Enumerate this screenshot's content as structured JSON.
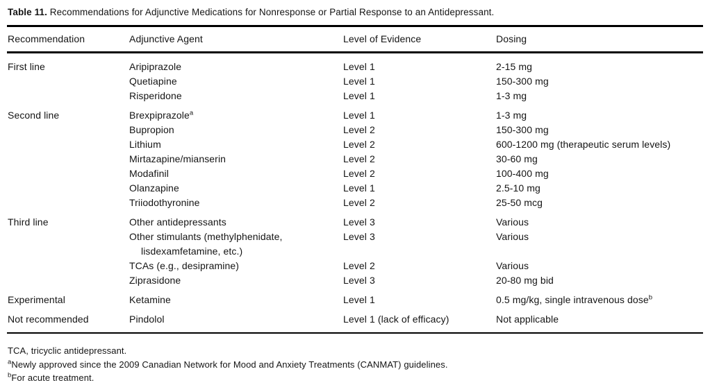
{
  "table": {
    "title_label": "Table 11.",
    "title_text": " Recommendations for Adjunctive Medications for Nonresponse or Partial Response to an Antidepressant.",
    "columns": [
      "Recommendation",
      "Adjunctive Agent",
      "Level of Evidence",
      "Dosing"
    ],
    "sections": [
      {
        "recommendation": "First line",
        "rows": [
          {
            "agent": "Aripiprazole",
            "agent_sup": "",
            "evidence": "Level 1",
            "dosing": "2-15 mg",
            "dosing_sup": ""
          },
          {
            "agent": "Quetiapine",
            "agent_sup": "",
            "evidence": "Level 1",
            "dosing": "150-300 mg",
            "dosing_sup": ""
          },
          {
            "agent": "Risperidone",
            "agent_sup": "",
            "evidence": "Level 1",
            "dosing": "1-3 mg",
            "dosing_sup": ""
          }
        ]
      },
      {
        "recommendation": "Second line",
        "rows": [
          {
            "agent": "Brexpiprazole",
            "agent_sup": "a",
            "evidence": "Level 1",
            "dosing": "1-3 mg",
            "dosing_sup": ""
          },
          {
            "agent": "Bupropion",
            "agent_sup": "",
            "evidence": "Level 2",
            "dosing": "150-300 mg",
            "dosing_sup": ""
          },
          {
            "agent": "Lithium",
            "agent_sup": "",
            "evidence": "Level 2",
            "dosing": "600-1200 mg (therapeutic serum levels)",
            "dosing_sup": ""
          },
          {
            "agent": "Mirtazapine/mianserin",
            "agent_sup": "",
            "evidence": "Level 2",
            "dosing": "30-60 mg",
            "dosing_sup": ""
          },
          {
            "agent": "Modafinil",
            "agent_sup": "",
            "evidence": "Level 2",
            "dosing": "100-400 mg",
            "dosing_sup": ""
          },
          {
            "agent": "Olanzapine",
            "agent_sup": "",
            "evidence": "Level 1",
            "dosing": "2.5-10 mg",
            "dosing_sup": ""
          },
          {
            "agent": "Triiodothyronine",
            "agent_sup": "",
            "evidence": "Level 2",
            "dosing": "25-50 mcg",
            "dosing_sup": ""
          }
        ]
      },
      {
        "recommendation": "Third line",
        "rows": [
          {
            "agent": "Other antidepressants",
            "agent_sup": "",
            "evidence": "Level 3",
            "dosing": "Various",
            "dosing_sup": ""
          },
          {
            "agent": "Other stimulants (methylphenidate, lisdexamfetamine, etc.)",
            "agent_sup": "",
            "evidence": "Level 3",
            "dosing": "Various",
            "dosing_sup": ""
          },
          {
            "agent": "TCAs (e.g., desipramine)",
            "agent_sup": "",
            "evidence": "Level 2",
            "dosing": "Various",
            "dosing_sup": ""
          },
          {
            "agent": "Ziprasidone",
            "agent_sup": "",
            "evidence": "Level 3",
            "dosing": "20-80 mg bid",
            "dosing_sup": ""
          }
        ]
      },
      {
        "recommendation": "Experimental",
        "rows": [
          {
            "agent": "Ketamine",
            "agent_sup": "",
            "evidence": "Level 1",
            "dosing": "0.5 mg/kg, single intravenous dose",
            "dosing_sup": "b"
          }
        ]
      },
      {
        "recommendation": "Not recommended",
        "rows": [
          {
            "agent": "Pindolol",
            "agent_sup": "",
            "evidence": "Level 1 (lack of efficacy)",
            "dosing": "Not applicable",
            "dosing_sup": ""
          }
        ]
      }
    ],
    "footnotes": [
      {
        "marker": "",
        "text": "TCA, tricyclic antidepressant."
      },
      {
        "marker": "a",
        "text": "Newly approved since the 2009 Canadian Network for Mood and Anxiety Treatments (CANMAT) guidelines."
      },
      {
        "marker": "b",
        "text": "For acute treatment."
      }
    ]
  }
}
